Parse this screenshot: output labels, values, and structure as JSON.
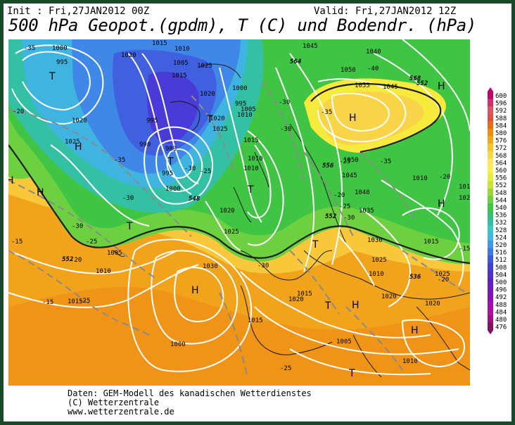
{
  "header": {
    "init": "Init : Fri,27JAN2012 00Z",
    "valid": "Valid: Fri,27JAN2012 12Z",
    "title": "500 hPa Geopot.(gpdm), T (C) und Bodendr. (hPa)"
  },
  "footer": {
    "line1": "Daten: GEM-Modell des kanadischen Wetterdienstes",
    "line2": "(C) Wetterzentrale",
    "line3": "www.wetterzentrale.de"
  },
  "legend": {
    "levels": [
      "600",
      "596",
      "592",
      "588",
      "584",
      "580",
      "576",
      "572",
      "568",
      "564",
      "560",
      "556",
      "552",
      "548",
      "544",
      "540",
      "536",
      "532",
      "528",
      "524",
      "520",
      "516",
      "512",
      "508",
      "504",
      "500",
      "496",
      "492",
      "488",
      "484",
      "480",
      "476"
    ],
    "colors": [
      "#c4006a",
      "#d0306e",
      "#dc5466",
      "#e05040",
      "#e86a1a",
      "#ec8c10",
      "#f4a818",
      "#f8c430",
      "#fad848",
      "#fce860",
      "#f6f04c",
      "#e4ec3c",
      "#cce434",
      "#9cd838",
      "#6cd040",
      "#40c844",
      "#34c070",
      "#30c0a0",
      "#38c8c8",
      "#40b8e0",
      "#4098e8",
      "#4078e8",
      "#4058e0",
      "#4040d8",
      "#5030d0",
      "#6020c8",
      "#7418c0",
      "#8810b8",
      "#a010b0",
      "#b010a0",
      "#a01080",
      "#801060"
    ]
  },
  "map": {
    "pressure_labels": [
      "1000",
      "995",
      "1020",
      "1015",
      "1010",
      "1005",
      "1025",
      "1020",
      "1015",
      "1000",
      "995",
      "1010",
      "1005",
      "1020",
      "1025",
      "995",
      "990",
      "983",
      "995",
      "1000",
      "1025",
      "1020",
      "1045",
      "1040",
      "1050",
      "1055",
      "1045",
      "1050",
      "1045",
      "1040",
      "1035",
      "1030",
      "1025",
      "1015",
      "1010",
      "1020",
      "1025",
      "1005",
      "1010",
      "1015",
      "1030",
      "1020",
      "1015",
      "1020",
      "1025",
      "1020",
      "1015",
      "1010",
      "1000",
      "1005",
      "1010",
      "1015",
      "1020",
      "1015",
      "1010",
      "1010"
    ],
    "temp_labels": [
      "-35",
      "-20",
      "-35",
      "-30",
      "-25",
      "-20",
      "-30",
      "-30",
      "-25",
      "-15",
      "-40",
      "-35",
      "-30",
      "-35",
      "-25",
      "-30",
      "-20",
      "-20",
      "-25",
      "-15",
      "-30",
      "-25",
      "-30",
      "-15",
      "-25",
      "-20"
    ],
    "height_labels": [
      "552",
      "556",
      "552",
      "548",
      "536",
      "552",
      "564",
      "568"
    ],
    "highs": [
      "H",
      "H",
      "H",
      "H",
      "H",
      "H",
      "H",
      "H",
      "H"
    ],
    "lows": [
      "T",
      "T",
      "T",
      "T",
      "T",
      "T",
      "T",
      "T"
    ]
  }
}
